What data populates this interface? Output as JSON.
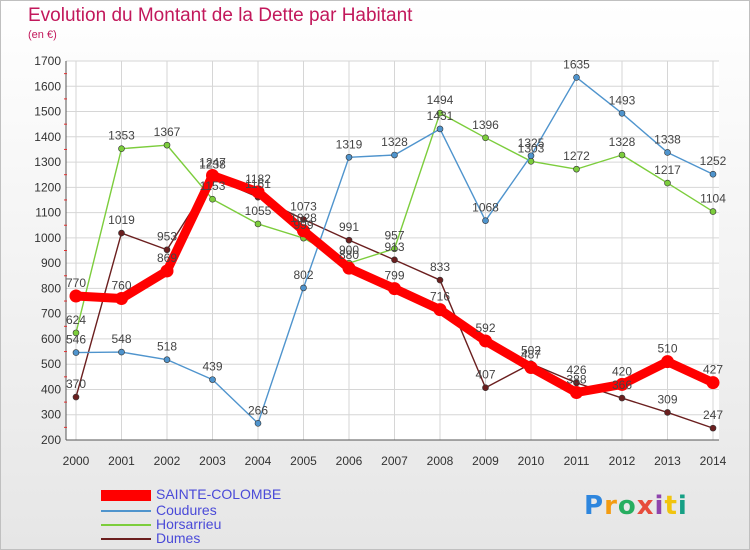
{
  "header": {
    "title": "Evolution du Montant de la Dette par Habitant",
    "subtitle": "(en €)"
  },
  "logo": {
    "text": "Proxiti"
  },
  "chart_data": {
    "type": "line",
    "x": [
      2000,
      2001,
      2002,
      2003,
      2004,
      2005,
      2006,
      2007,
      2008,
      2009,
      2010,
      2011,
      2012,
      2013,
      2014
    ],
    "ylim": [
      200,
      1700
    ],
    "yticks": [
      200,
      300,
      400,
      500,
      600,
      700,
      800,
      900,
      1000,
      1100,
      1200,
      1300,
      1400,
      1500,
      1600,
      1700
    ],
    "grid": true,
    "legend_position": "bottom-left",
    "series": [
      {
        "name": "SAINTE-COLOMBE",
        "color": "#ff0000",
        "values": [
          770,
          760,
          869,
          1247,
          1182,
          1028,
          880,
          799,
          716,
          592,
          487,
          388,
          420,
          510,
          427
        ]
      },
      {
        "name": "Coudures",
        "color": "#4f94cd",
        "values": [
          546,
          548,
          518,
          439,
          266,
          802,
          1319,
          1328,
          1431,
          1068,
          1325,
          1635,
          1493,
          1338,
          1252
        ]
      },
      {
        "name": "Horsarrieu",
        "color": "#7ccd3c",
        "values": [
          624,
          1353,
          1367,
          1153,
          1055,
          999,
          900,
          957,
          1494,
          1396,
          1303,
          1272,
          1328,
          1217,
          1104
        ]
      },
      {
        "name": "Dumes",
        "color": "#6b1f1f",
        "values": [
          370,
          1019,
          953,
          1238,
          1161,
          1073,
          991,
          913,
          833,
          407,
          502,
          426,
          366,
          309,
          247
        ]
      }
    ]
  }
}
